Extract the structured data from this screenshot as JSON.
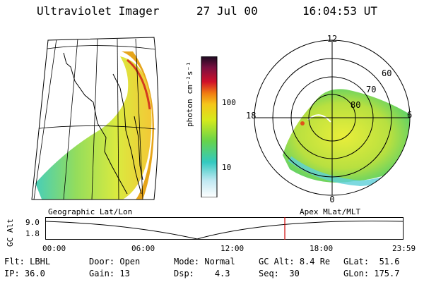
{
  "header": {
    "instrument": "Ultraviolet Imager",
    "date": "27 Jul 00",
    "time": "16:04:53 UT"
  },
  "colorbar": {
    "unit_label": "photon cm⁻²s⁻¹",
    "ticks": [
      "100",
      "10"
    ]
  },
  "polar": {
    "labels": {
      "top": "12",
      "bottom": "0",
      "left": "18",
      "right": "6",
      "lat60": "60",
      "lat70": "70",
      "lat80": "80"
    }
  },
  "projection_labels": {
    "left": "Geographic Lat/Lon",
    "right": "Apex MLat/MLT"
  },
  "altitude_plot": {
    "ylabel": "GC Alt",
    "yticks": [
      "9.0",
      "1.8"
    ],
    "xticks": [
      "00:00",
      "06:00",
      "12:00",
      "18:00",
      "23:59"
    ],
    "current_time_fraction": 0.67
  },
  "info": [
    {
      "key": "Flt:",
      "value": "LBHL"
    },
    {
      "key": "IP:",
      "value": "36.0"
    },
    {
      "key": "Door:",
      "value": "Open"
    },
    {
      "key": "Gain:",
      "value": "13"
    },
    {
      "key": "Mode:",
      "value": "Normal"
    },
    {
      "key": "Dsp:",
      "value": "4.3"
    },
    {
      "key": "GC Alt:",
      "value": "8.4 Re"
    },
    {
      "key": "Seq:",
      "value": "30"
    },
    {
      "key": "GLat:",
      "value": "51.6"
    },
    {
      "key": "GLon:",
      "value": "175.7"
    }
  ],
  "colors": {
    "accent_red": "#cc0000"
  }
}
